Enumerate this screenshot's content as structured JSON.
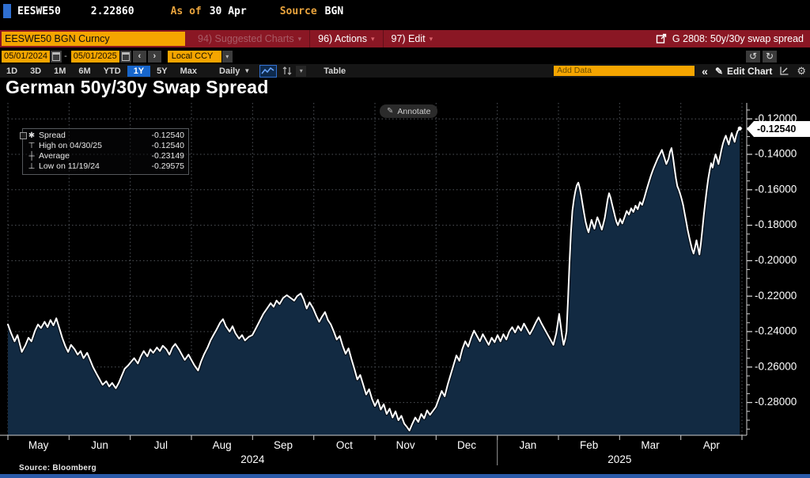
{
  "quote_bar": {
    "ticker": "EESWE50",
    "price": "2.22860",
    "as_of_label": "As of",
    "as_of_date": "30 Apr",
    "source_label": "Source",
    "source_value": "BGN"
  },
  "menu_bar": {
    "security_input": "EESWE50 BGN Curncy",
    "items": [
      {
        "label": "94) Suggested Charts",
        "dimmed": true
      },
      {
        "label": "96) Actions",
        "dimmed": false
      },
      {
        "label": "97) Edit",
        "dimmed": false
      }
    ],
    "chart_id": "G 2808: 50y/30y swap spread"
  },
  "range_bar": {
    "start_date": "05/01/2024",
    "end_date": "05/01/2025",
    "prev": "‹",
    "next": "›",
    "currency": "Local CCY"
  },
  "toolbar": {
    "periods": [
      "1D",
      "3D",
      "1M",
      "6M",
      "YTD",
      "1Y",
      "5Y",
      "Max"
    ],
    "active_period": "1Y",
    "frequency": "Daily",
    "table_label": "Table",
    "add_data_placeholder": "Add Data",
    "collapse_label": "«",
    "edit_chart_label": "Edit Chart"
  },
  "chart": {
    "title": "German 50y/30y Swap Spread",
    "annotate_label": "Annotate",
    "last_value_label": "-0.12540",
    "source_note": "Source: Bloomberg",
    "legend": {
      "rows": [
        {
          "icon": "spread-marker",
          "label": "Spread",
          "value": "-0.12540"
        },
        {
          "icon": "high-marker",
          "label": "High on 04/30/25",
          "value": "-0.12540"
        },
        {
          "icon": "average-marker",
          "label": "Average",
          "value": "-0.23149"
        },
        {
          "icon": "low-marker",
          "label": "Low on 11/19/24",
          "value": "-0.29575"
        }
      ]
    }
  },
  "colors": {
    "accent_orange": "#f5a500",
    "bar_red": "#8a1724",
    "accent_blue": "#1766cc",
    "chart_fill": "#122a42",
    "chart_line": "#ffffff",
    "grid": "#50545a",
    "axis": "#cfcfcf"
  },
  "chart_data": {
    "type": "area",
    "title": "German 50y/30y Swap Spread",
    "x_domain": [
      "05/01/2024",
      "05/01/2025"
    ],
    "x_months": [
      "May",
      "Jun",
      "Jul",
      "Aug",
      "Sep",
      "Oct",
      "Nov",
      "Dec",
      "Jan",
      "Feb",
      "Mar",
      "Apr"
    ],
    "year_labels": [
      {
        "label": "2024",
        "span": [
          0,
          8
        ]
      },
      {
        "label": "2025",
        "span": [
          8,
          12
        ]
      }
    ],
    "y_ticks": [
      -0.12,
      -0.14,
      -0.16,
      -0.18,
      -0.2,
      -0.22,
      -0.24,
      -0.26,
      -0.28
    ],
    "y_tick_labels": [
      "-0.12000",
      "-0.14000",
      "-0.16000",
      "-0.18000",
      "-0.20000",
      "-0.22000",
      "-0.24000",
      "-0.26000",
      "-0.28000"
    ],
    "ylim": [
      -0.2985,
      -0.111
    ],
    "grid": true,
    "legend_position": "top-left",
    "stats": {
      "last": -0.1254,
      "high": {
        "date": "04/30/25",
        "value": -0.1254
      },
      "average": -0.23149,
      "low": {
        "date": "11/19/24",
        "value": -0.29575
      }
    },
    "points": [
      [
        0.0,
        -0.236
      ],
      [
        0.004,
        -0.2405
      ],
      [
        0.009,
        -0.2455
      ],
      [
        0.013,
        -0.242
      ],
      [
        0.019,
        -0.2515
      ],
      [
        0.024,
        -0.2475
      ],
      [
        0.028,
        -0.2435
      ],
      [
        0.032,
        -0.2455
      ],
      [
        0.037,
        -0.2395
      ],
      [
        0.041,
        -0.236
      ],
      [
        0.045,
        -0.238
      ],
      [
        0.05,
        -0.2345
      ],
      [
        0.054,
        -0.2375
      ],
      [
        0.058,
        -0.2335
      ],
      [
        0.062,
        -0.2365
      ],
      [
        0.066,
        -0.2325
      ],
      [
        0.07,
        -0.238
      ],
      [
        0.074,
        -0.2435
      ],
      [
        0.078,
        -0.248
      ],
      [
        0.082,
        -0.2515
      ],
      [
        0.086,
        -0.2475
      ],
      [
        0.091,
        -0.25
      ],
      [
        0.095,
        -0.253
      ],
      [
        0.099,
        -0.251
      ],
      [
        0.103,
        -0.255
      ],
      [
        0.108,
        -0.252
      ],
      [
        0.112,
        -0.256
      ],
      [
        0.116,
        -0.26
      ],
      [
        0.121,
        -0.264
      ],
      [
        0.125,
        -0.267
      ],
      [
        0.129,
        -0.27
      ],
      [
        0.134,
        -0.268
      ],
      [
        0.138,
        -0.271
      ],
      [
        0.142,
        -0.269
      ],
      [
        0.147,
        -0.272
      ],
      [
        0.151,
        -0.269
      ],
      [
        0.155,
        -0.265
      ],
      [
        0.159,
        -0.261
      ],
      [
        0.164,
        -0.259
      ],
      [
        0.168,
        -0.257
      ],
      [
        0.172,
        -0.255
      ],
      [
        0.177,
        -0.258
      ],
      [
        0.181,
        -0.254
      ],
      [
        0.185,
        -0.251
      ],
      [
        0.19,
        -0.254
      ],
      [
        0.194,
        -0.25
      ],
      [
        0.198,
        -0.252
      ],
      [
        0.203,
        -0.249
      ],
      [
        0.207,
        -0.251
      ],
      [
        0.211,
        -0.248
      ],
      [
        0.216,
        -0.25
      ],
      [
        0.22,
        -0.253
      ],
      [
        0.224,
        -0.249
      ],
      [
        0.228,
        -0.247
      ],
      [
        0.233,
        -0.25
      ],
      [
        0.237,
        -0.253
      ],
      [
        0.241,
        -0.256
      ],
      [
        0.246,
        -0.253
      ],
      [
        0.25,
        -0.256
      ],
      [
        0.254,
        -0.259
      ],
      [
        0.259,
        -0.262
      ],
      [
        0.263,
        -0.257
      ],
      [
        0.267,
        -0.253
      ],
      [
        0.272,
        -0.249
      ],
      [
        0.276,
        -0.245
      ],
      [
        0.28,
        -0.242
      ],
      [
        0.284,
        -0.239
      ],
      [
        0.289,
        -0.235
      ],
      [
        0.293,
        -0.233
      ],
      [
        0.297,
        -0.237
      ],
      [
        0.302,
        -0.24
      ],
      [
        0.306,
        -0.237
      ],
      [
        0.31,
        -0.241
      ],
      [
        0.315,
        -0.244
      ],
      [
        0.319,
        -0.242
      ],
      [
        0.323,
        -0.245
      ],
      [
        0.328,
        -0.243
      ],
      [
        0.333,
        -0.242
      ],
      [
        0.338,
        -0.238
      ],
      [
        0.343,
        -0.234
      ],
      [
        0.348,
        -0.23
      ],
      [
        0.353,
        -0.227
      ],
      [
        0.358,
        -0.224
      ],
      [
        0.362,
        -0.226
      ],
      [
        0.366,
        -0.2225
      ],
      [
        0.37,
        -0.2245
      ],
      [
        0.375,
        -0.221
      ],
      [
        0.38,
        -0.2195
      ],
      [
        0.385,
        -0.221
      ],
      [
        0.39,
        -0.2225
      ],
      [
        0.394,
        -0.22
      ],
      [
        0.399,
        -0.2185
      ],
      [
        0.403,
        -0.222
      ],
      [
        0.407,
        -0.227
      ],
      [
        0.411,
        -0.2235
      ],
      [
        0.416,
        -0.227
      ],
      [
        0.42,
        -0.231
      ],
      [
        0.424,
        -0.2345
      ],
      [
        0.428,
        -0.2315
      ],
      [
        0.432,
        -0.229
      ],
      [
        0.436,
        -0.2335
      ],
      [
        0.44,
        -0.236
      ],
      [
        0.444,
        -0.24
      ],
      [
        0.448,
        -0.2445
      ],
      [
        0.452,
        -0.2425
      ],
      [
        0.456,
        -0.248
      ],
      [
        0.46,
        -0.2525
      ],
      [
        0.464,
        -0.2495
      ],
      [
        0.468,
        -0.2555
      ],
      [
        0.472,
        -0.261
      ],
      [
        0.476,
        -0.267
      ],
      [
        0.48,
        -0.2645
      ],
      [
        0.484,
        -0.27
      ],
      [
        0.488,
        -0.2755
      ],
      [
        0.492,
        -0.2725
      ],
      [
        0.496,
        -0.278
      ],
      [
        0.5,
        -0.282
      ],
      [
        0.504,
        -0.2785
      ],
      [
        0.508,
        -0.284
      ],
      [
        0.512,
        -0.281
      ],
      [
        0.516,
        -0.2865
      ],
      [
        0.52,
        -0.2835
      ],
      [
        0.524,
        -0.2885
      ],
      [
        0.528,
        -0.285
      ],
      [
        0.532,
        -0.29
      ],
      [
        0.536,
        -0.2875
      ],
      [
        0.54,
        -0.292
      ],
      [
        0.544,
        -0.294
      ],
      [
        0.547,
        -0.2958
      ],
      [
        0.551,
        -0.292
      ],
      [
        0.555,
        -0.2885
      ],
      [
        0.559,
        -0.291
      ],
      [
        0.563,
        -0.2865
      ],
      [
        0.567,
        -0.289
      ],
      [
        0.571,
        -0.2845
      ],
      [
        0.575,
        -0.287
      ],
      [
        0.583,
        -0.2825
      ],
      [
        0.587,
        -0.278
      ],
      [
        0.591,
        -0.2735
      ],
      [
        0.595,
        -0.2765
      ],
      [
        0.599,
        -0.27
      ],
      [
        0.603,
        -0.2645
      ],
      [
        0.607,
        -0.259
      ],
      [
        0.611,
        -0.2535
      ],
      [
        0.615,
        -0.2565
      ],
      [
        0.619,
        -0.25
      ],
      [
        0.623,
        -0.2455
      ],
      [
        0.627,
        -0.2485
      ],
      [
        0.631,
        -0.2435
      ],
      [
        0.635,
        -0.2395
      ],
      [
        0.639,
        -0.2425
      ],
      [
        0.643,
        -0.2455
      ],
      [
        0.647,
        -0.2415
      ],
      [
        0.651,
        -0.2445
      ],
      [
        0.655,
        -0.2475
      ],
      [
        0.659,
        -0.2435
      ],
      [
        0.663,
        -0.246
      ],
      [
        0.667,
        -0.242
      ],
      [
        0.671,
        -0.2455
      ],
      [
        0.675,
        -0.2415
      ],
      [
        0.679,
        -0.2445
      ],
      [
        0.683,
        -0.24
      ],
      [
        0.687,
        -0.2375
      ],
      [
        0.691,
        -0.2405
      ],
      [
        0.695,
        -0.237
      ],
      [
        0.699,
        -0.2395
      ],
      [
        0.703,
        -0.2355
      ],
      [
        0.707,
        -0.2385
      ],
      [
        0.711,
        -0.2415
      ],
      [
        0.715,
        -0.2385
      ],
      [
        0.719,
        -0.235
      ],
      [
        0.723,
        -0.232
      ],
      [
        0.727,
        -0.2355
      ],
      [
        0.731,
        -0.2385
      ],
      [
        0.735,
        -0.2415
      ],
      [
        0.739,
        -0.2445
      ],
      [
        0.743,
        -0.2475
      ],
      [
        0.747,
        -0.241
      ],
      [
        0.749,
        -0.2355
      ],
      [
        0.751,
        -0.23
      ],
      [
        0.753,
        -0.2365
      ],
      [
        0.755,
        -0.2425
      ],
      [
        0.757,
        -0.2475
      ],
      [
        0.759,
        -0.2445
      ],
      [
        0.761,
        -0.24
      ],
      [
        0.763,
        -0.222
      ],
      [
        0.765,
        -0.202
      ],
      [
        0.767,
        -0.184
      ],
      [
        0.769,
        -0.172
      ],
      [
        0.771,
        -0.1655
      ],
      [
        0.773,
        -0.161
      ],
      [
        0.775,
        -0.1575
      ],
      [
        0.777,
        -0.156
      ],
      [
        0.779,
        -0.159
      ],
      [
        0.781,
        -0.1635
      ],
      [
        0.783,
        -0.1685
      ],
      [
        0.785,
        -0.1735
      ],
      [
        0.787,
        -0.178
      ],
      [
        0.789,
        -0.1815
      ],
      [
        0.791,
        -0.184
      ],
      [
        0.793,
        -0.1805
      ],
      [
        0.795,
        -0.177
      ],
      [
        0.797,
        -0.1795
      ],
      [
        0.799,
        -0.182
      ],
      [
        0.801,
        -0.1785
      ],
      [
        0.803,
        -0.1755
      ],
      [
        0.805,
        -0.1775
      ],
      [
        0.807,
        -0.18
      ],
      [
        0.809,
        -0.1825
      ],
      [
        0.811,
        -0.1795
      ],
      [
        0.813,
        -0.176
      ],
      [
        0.815,
        -0.171
      ],
      [
        0.817,
        -0.1655
      ],
      [
        0.819,
        -0.162
      ],
      [
        0.821,
        -0.1645
      ],
      [
        0.823,
        -0.168
      ],
      [
        0.825,
        -0.1715
      ],
      [
        0.827,
        -0.175
      ],
      [
        0.829,
        -0.178
      ],
      [
        0.831,
        -0.18
      ],
      [
        0.834,
        -0.1765
      ],
      [
        0.837,
        -0.179
      ],
      [
        0.84,
        -0.1755
      ],
      [
        0.843,
        -0.172
      ],
      [
        0.846,
        -0.174
      ],
      [
        0.849,
        -0.1705
      ],
      [
        0.852,
        -0.1725
      ],
      [
        0.855,
        -0.169
      ],
      [
        0.858,
        -0.171
      ],
      [
        0.861,
        -0.167
      ],
      [
        0.864,
        -0.1685
      ],
      [
        0.867,
        -0.1645
      ],
      [
        0.87,
        -0.16
      ],
      [
        0.873,
        -0.156
      ],
      [
        0.876,
        -0.152
      ],
      [
        0.879,
        -0.1485
      ],
      [
        0.882,
        -0.1455
      ],
      [
        0.885,
        -0.1425
      ],
      [
        0.888,
        -0.14
      ],
      [
        0.891,
        -0.1375
      ],
      [
        0.894,
        -0.1415
      ],
      [
        0.897,
        -0.1455
      ],
      [
        0.9,
        -0.1425
      ],
      [
        0.902,
        -0.1385
      ],
      [
        0.904,
        -0.1365
      ],
      [
        0.906,
        -0.1415
      ],
      [
        0.908,
        -0.1475
      ],
      [
        0.91,
        -0.1535
      ],
      [
        0.912,
        -0.158
      ],
      [
        0.914,
        -0.16
      ],
      [
        0.916,
        -0.1625
      ],
      [
        0.918,
        -0.1655
      ],
      [
        0.92,
        -0.169
      ],
      [
        0.922,
        -0.1735
      ],
      [
        0.924,
        -0.178
      ],
      [
        0.926,
        -0.1825
      ],
      [
        0.928,
        -0.1865
      ],
      [
        0.93,
        -0.19
      ],
      [
        0.932,
        -0.1935
      ],
      [
        0.934,
        -0.196
      ],
      [
        0.936,
        -0.1925
      ],
      [
        0.938,
        -0.1885
      ],
      [
        0.94,
        -0.1925
      ],
      [
        0.942,
        -0.1965
      ],
      [
        0.944,
        -0.1905
      ],
      [
        0.946,
        -0.1825
      ],
      [
        0.948,
        -0.1745
      ],
      [
        0.95,
        -0.167
      ],
      [
        0.952,
        -0.16
      ],
      [
        0.954,
        -0.154
      ],
      [
        0.956,
        -0.149
      ],
      [
        0.958,
        -0.145
      ],
      [
        0.96,
        -0.1475
      ],
      [
        0.962,
        -0.1435
      ],
      [
        0.964,
        -0.14
      ],
      [
        0.966,
        -0.1425
      ],
      [
        0.968,
        -0.1455
      ],
      [
        0.97,
        -0.1415
      ],
      [
        0.972,
        -0.1375
      ],
      [
        0.974,
        -0.134
      ],
      [
        0.976,
        -0.1315
      ],
      [
        0.978,
        -0.1295
      ],
      [
        0.98,
        -0.132
      ],
      [
        0.982,
        -0.1345
      ],
      [
        0.984,
        -0.131
      ],
      [
        0.986,
        -0.128
      ],
      [
        0.988,
        -0.1305
      ],
      [
        0.99,
        -0.133
      ],
      [
        0.992,
        -0.1295
      ],
      [
        0.994,
        -0.127
      ],
      [
        0.997,
        -0.1254
      ]
    ]
  }
}
